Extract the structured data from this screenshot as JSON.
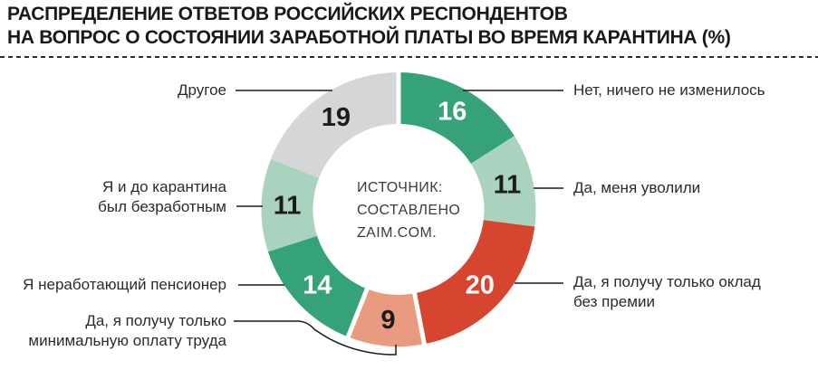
{
  "title": {
    "line1": "РАСПРЕДЕЛЕНИЕ ОТВЕТОВ РОССИЙСКИХ РЕСПОНДЕНТОВ",
    "line2": "НА ВОПРОС О СОСТОЯНИИ ЗАРАБОТНОЙ ПЛАТЫ ВО ВРЕМЯ КАРАНТИНА (%)"
  },
  "source_note": {
    "line1": "ИСТОЧНИК:",
    "line2": "СОСТАВЛЕНО",
    "line3": "ZAIM.COM."
  },
  "chart_data": {
    "type": "pie",
    "subtype": "donut",
    "title": "РАСПРЕДЕЛЕНИЕ ОТВЕТОВ РОССИЙСКИХ РЕСПОНДЕНТОВ НА ВОПРОС О СОСТОЯНИИ ЗАРАБОТНОЙ ПЛАТЫ ВО ВРЕМЯ КАРАНТИНА (%)",
    "unit": "%",
    "start_angle_deg": 0,
    "direction": "clockwise",
    "total": 100,
    "source_note": "ИСТОЧНИК: СОСТАВЛЕНО ZAIM.COM.",
    "segments": [
      {
        "label": "Нет, ничего не изменилось",
        "label_lines": [
          "Нет, ничего не изменилось"
        ],
        "value": 16,
        "color": "#35a277",
        "value_text_color": "#ffffff"
      },
      {
        "label": "Да, меня уволили",
        "label_lines": [
          "Да, меня уволили"
        ],
        "value": 11,
        "color": "#aad3bf",
        "value_text_color": "#1c1c1c"
      },
      {
        "label": "Да, я получу только оклад без премии",
        "label_lines": [
          "Да, я получу только оклад",
          "без премии"
        ],
        "value": 20,
        "color": "#d6452f",
        "value_text_color": "#ffffff"
      },
      {
        "label": "Да, я получу только минимальную оплату труда",
        "label_lines": [
          "Да, я получу только",
          "минимальную оплату труда"
        ],
        "value": 9,
        "color": "#e89b7e",
        "value_text_color": "#1c1c1c"
      },
      {
        "label": "Я неработающий пенсионер",
        "label_lines": [
          "Я неработающий пенсионер"
        ],
        "value": 14,
        "color": "#35a277",
        "value_text_color": "#ffffff"
      },
      {
        "label": "Я и до карантина был безработным",
        "label_lines": [
          "Я и до карантина",
          "был безработным"
        ],
        "value": 11,
        "color": "#aad3bf",
        "value_text_color": "#1c1c1c"
      },
      {
        "label": "Другое",
        "label_lines": [
          "Другое"
        ],
        "value": 19,
        "color": "#d5d6d8",
        "value_text_color": "#1c1c1c"
      }
    ]
  }
}
